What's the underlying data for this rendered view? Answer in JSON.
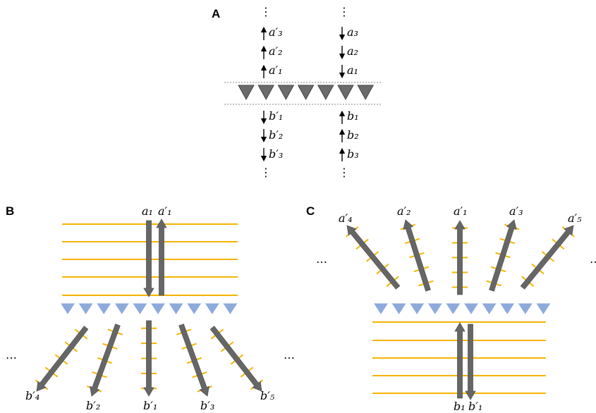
{
  "panels": {
    "a": {
      "label": "A",
      "left_labels": [
        "a′₃",
        "a′₂",
        "a′₁",
        "b′₁",
        "b′₂",
        "b′₃"
      ],
      "right_labels": [
        "a₃",
        "a₂",
        "a₁",
        "b₁",
        "b₂",
        "b₃"
      ],
      "ellipsis": "⋮"
    },
    "b": {
      "label": "B",
      "top_labels": [
        "a₁",
        "a′₁"
      ],
      "bottom_labels": [
        "b′₄",
        "b′₂",
        "b′₁",
        "b′₃",
        "b′₅"
      ],
      "ellipsis": "…"
    },
    "c": {
      "label": "C",
      "top_labels": [
        "a′₄",
        "a′₂",
        "a′₁",
        "a′₃",
        "a′₅"
      ],
      "bottom_labels": [
        "b₁",
        "b′₁"
      ],
      "ellipsis": "…"
    }
  },
  "colors": {
    "prism_dark": "#6b6b6b",
    "prism_light": "#8eaadb",
    "wavefront": "#f4b400",
    "arrow": "#666666"
  }
}
